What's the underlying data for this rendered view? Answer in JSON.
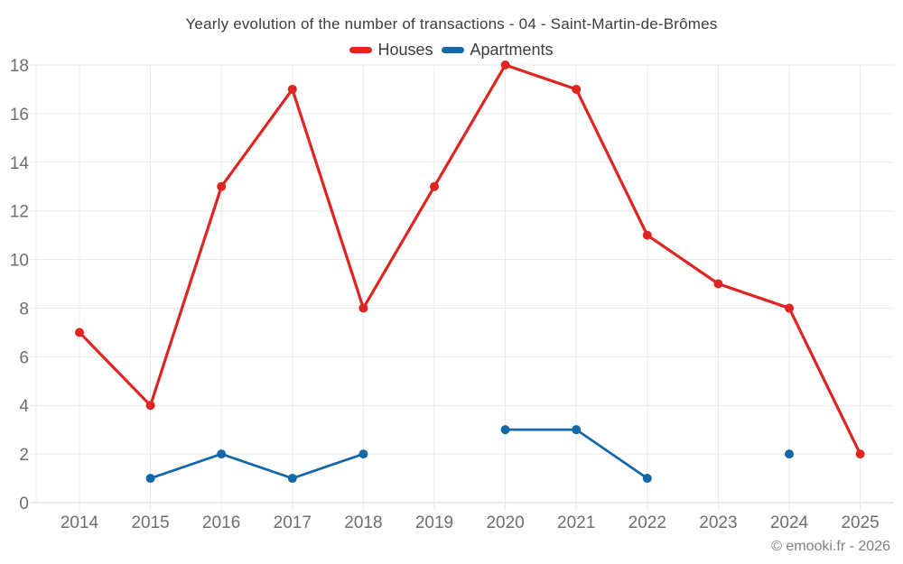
{
  "chart": {
    "title": "Yearly evolution of the number of transactions - 04 - Saint-Martin-de-Brômes",
    "copyright": "© emooki.fr - 2026"
  },
  "chart_data": {
    "type": "line",
    "title": "Yearly evolution of the number of transactions - 04 - Saint-Martin-de-Brômes",
    "categories": [
      "2014",
      "2015",
      "2016",
      "2017",
      "2018",
      "2019",
      "2020",
      "2021",
      "2022",
      "2023",
      "2024",
      "2025"
    ],
    "series": [
      {
        "name": "Houses",
        "color": "#e02422",
        "line_width": 3.2,
        "values": [
          7,
          4,
          13,
          17,
          8,
          13,
          18,
          17,
          11,
          9,
          8,
          2
        ]
      },
      {
        "name": "Apartments",
        "color": "#1268a9",
        "line_width": 2.75,
        "values": [
          null,
          1,
          2,
          1,
          2,
          null,
          3,
          3,
          1,
          null,
          2,
          null
        ]
      }
    ],
    "xlabel": "",
    "ylabel": "",
    "ylim": [
      0,
      18
    ],
    "ytick_step": 2,
    "grid": true,
    "legend_position": "top",
    "colors": {
      "grid_line": "#e9e9e9",
      "axis_line": "#d4d4d4",
      "tick_label": "#6e6e6e",
      "title_text": "#3d3d3d"
    }
  }
}
